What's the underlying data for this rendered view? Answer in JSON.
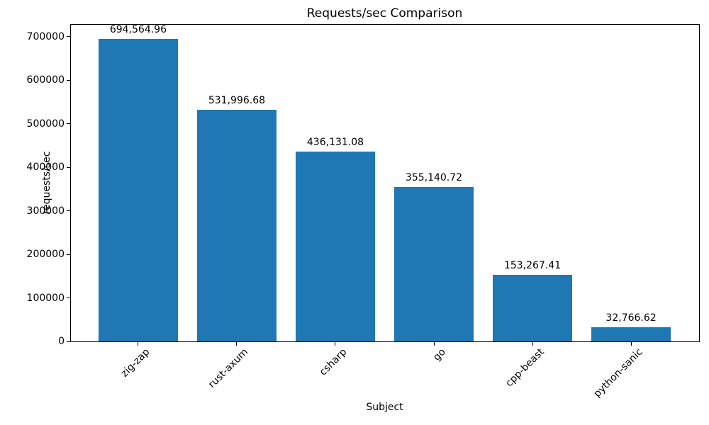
{
  "chart_data": {
    "type": "bar",
    "title": "Requests/sec Comparison",
    "xlabel": "Subject",
    "ylabel": "requests/sec",
    "categories": [
      "zig-zap",
      "rust-axum",
      "csharp",
      "go",
      "cpp-beast",
      "python-sanic"
    ],
    "values": [
      694564.96,
      531996.68,
      436131.08,
      355140.72,
      153267.41,
      32766.62
    ],
    "value_labels": [
      "694,564.96",
      "531,996.68",
      "436,131.08",
      "355,140.72",
      "153,267.41",
      "32,766.62"
    ],
    "yticks": [
      0,
      100000,
      200000,
      300000,
      400000,
      500000,
      600000,
      700000
    ],
    "ytick_labels": [
      "0",
      "100000",
      "200000",
      "300000",
      "400000",
      "500000",
      "600000",
      "700000"
    ],
    "ylim": [
      0,
      729293
    ],
    "xlim": [
      -0.69,
      5.69
    ],
    "bar_rel_width": 0.8,
    "bar_color": "#1f77b4",
    "text_color": "#000000",
    "grid": false,
    "legend": null
  }
}
